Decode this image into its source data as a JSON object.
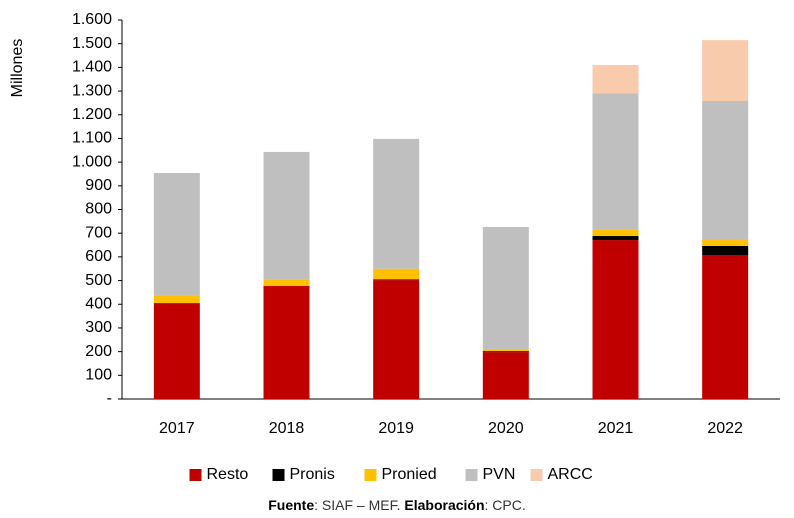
{
  "chart_data": {
    "type": "stacked_bar",
    "y_label": "Millones",
    "categories": [
      "2017",
      "2018",
      "2019",
      "2020",
      "2021",
      "2022"
    ],
    "series": [
      {
        "name": "Resto",
        "color": "#c00000",
        "values": [
          405,
          477,
          502,
          198,
          671,
          608
        ]
      },
      {
        "name": "Pronis",
        "color": "#000000",
        "values": [
          0,
          0,
          3,
          4,
          17,
          38
        ]
      },
      {
        "name": "Pronied",
        "color": "#ffc000",
        "values": [
          30,
          29,
          45,
          5,
          29,
          25
        ]
      },
      {
        "name": "PVN",
        "color": "#bfbfbf",
        "values": [
          519,
          537,
          548,
          519,
          574,
          587
        ]
      },
      {
        "name": "ARCC",
        "color": "#f8cbad",
        "values": [
          0,
          0,
          0,
          0,
          119,
          257
        ]
      }
    ],
    "ylim": [
      0,
      1600
    ],
    "yticks": [
      {
        "value": 0,
        "label": "-"
      },
      100,
      200,
      300,
      400,
      500,
      600,
      700,
      800,
      900,
      {
        "value": 1000,
        "label": "1.000"
      },
      {
        "value": 1100,
        "label": "1.100"
      },
      {
        "value": 1200,
        "label": "1.200"
      },
      {
        "value": 1300,
        "label": "1.300"
      },
      {
        "value": 1400,
        "label": "1.400"
      },
      {
        "value": 1500,
        "label": "1.500"
      },
      {
        "value": 1600,
        "label": "1.600"
      }
    ],
    "legend": "bottom",
    "footer": {
      "source_label": "Fuente",
      "source": ": SIAF – MEF. ",
      "credit_label": "Elaboración",
      "credit": ": CPC."
    }
  }
}
